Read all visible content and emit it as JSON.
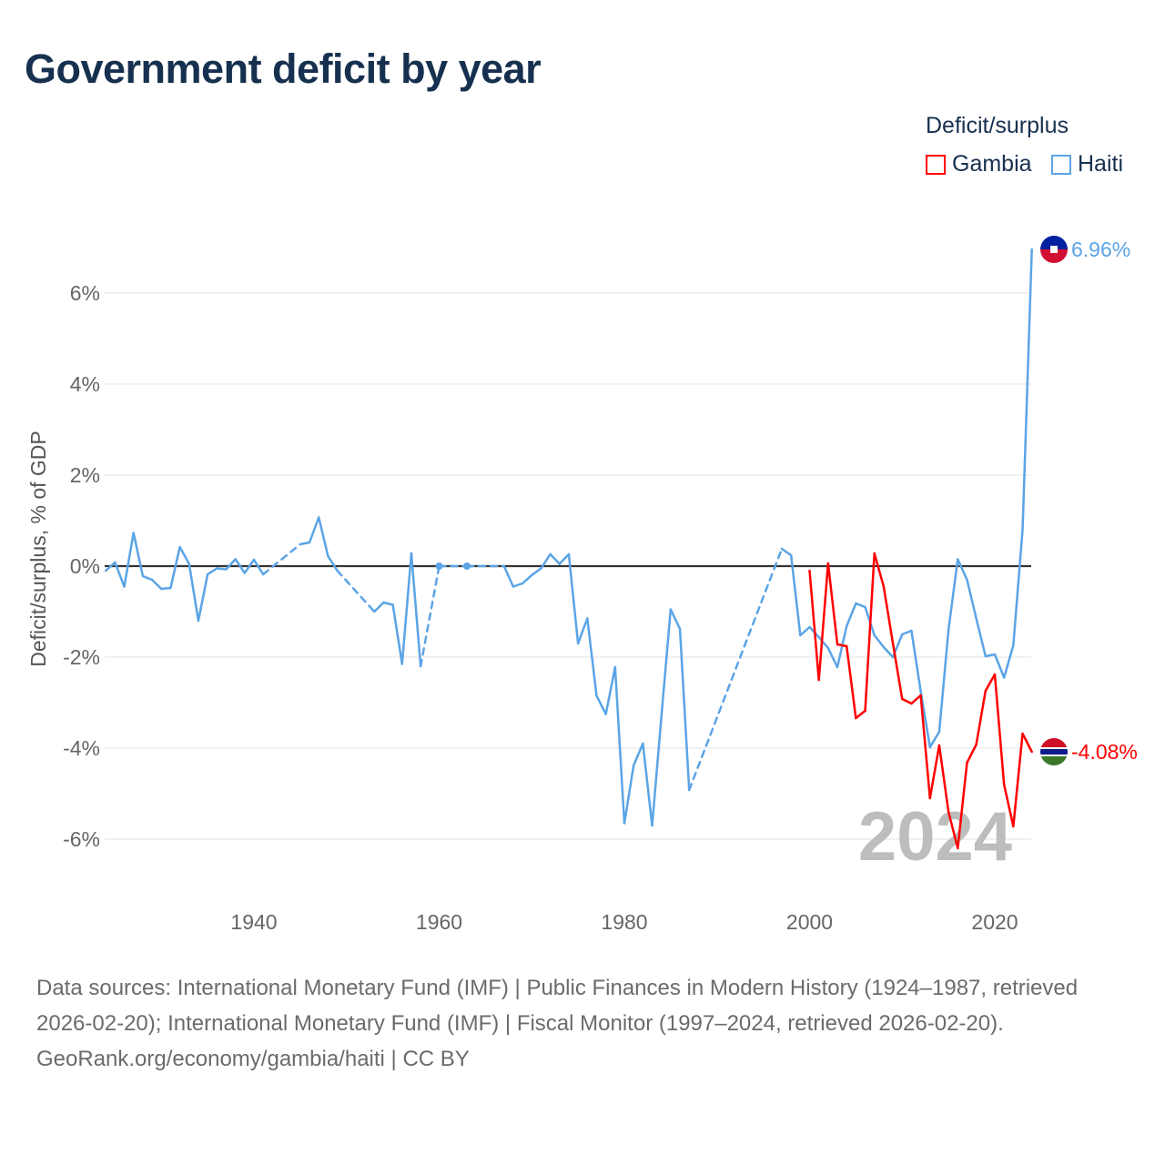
{
  "title": "Government deficit by year",
  "legend": {
    "title": "Deficit/surplus",
    "items": [
      {
        "name": "Gambia",
        "color": "#ff0000"
      },
      {
        "name": "Haiti",
        "color": "#5ba4e6"
      }
    ]
  },
  "footer": {
    "sources": "Data sources: International Monetary Fund (IMF) | Public Finances in Modern History (1924–1987, retrieved 2026-02-20); International Monetary Fund (IMF) | Fiscal Monitor (1997–2024, retrieved 2026-02-20).",
    "credit": "GeoRank.org/economy/gambia/haiti | CC BY"
  },
  "chart_data": {
    "type": "line",
    "title": "Government deficit by year",
    "xlabel": "",
    "ylabel": "Deficit/surplus, % of GDP",
    "xlim": [
      1924,
      2024
    ],
    "ylim": [
      -7.2,
      7.5
    ],
    "xticks": [
      1940,
      1960,
      1980,
      2000,
      2020
    ],
    "xtick_labels": [
      "1940",
      "1960",
      "1980",
      "2000",
      "2020"
    ],
    "yticks": [
      -6,
      -4,
      -2,
      0,
      2,
      4,
      6
    ],
    "ytick_labels": [
      "-6%",
      "-4%",
      "-2%",
      "0%",
      "2%",
      "4%",
      "6%"
    ],
    "watermark_year": "2024",
    "series": [
      {
        "name": "Haiti",
        "color": "#5ba4e6",
        "end_label": "6.96%",
        "x": [
          1924,
          1925,
          1926,
          1927,
          1928,
          1929,
          1930,
          1931,
          1932,
          1933,
          1934,
          1935,
          1936,
          1937,
          1938,
          1939,
          1940,
          1941,
          1945,
          1946,
          1947,
          1948,
          1949,
          1953,
          1954,
          1955,
          1956,
          1957,
          1958,
          1960,
          1963,
          1967,
          1968,
          1969,
          1970,
          1971,
          1972,
          1973,
          1974,
          1975,
          1976,
          1977,
          1978,
          1979,
          1980,
          1981,
          1982,
          1983,
          1984,
          1985,
          1986,
          1987,
          1997,
          1998,
          1999,
          2000,
          2001,
          2002,
          2003,
          2004,
          2005,
          2006,
          2007,
          2008,
          2009,
          2010,
          2011,
          2012,
          2013,
          2014,
          2015,
          2016,
          2017,
          2018,
          2019,
          2020,
          2021,
          2022,
          2023,
          2024
        ],
        "y": [
          -0.1,
          0.08,
          -0.45,
          0.73,
          -0.22,
          -0.3,
          -0.5,
          -0.48,
          0.42,
          0.05,
          -1.2,
          -0.18,
          -0.05,
          -0.07,
          0.15,
          -0.15,
          0.14,
          -0.18,
          0.48,
          0.52,
          1.07,
          0.22,
          -0.1,
          -1.0,
          -0.8,
          -0.85,
          -2.15,
          0.28,
          -2.2,
          0.0,
          0.0,
          0.0,
          -0.45,
          -0.38,
          -0.2,
          -0.05,
          0.26,
          0.05,
          0.26,
          -1.7,
          -1.15,
          -2.85,
          -3.25,
          -2.22,
          -5.65,
          -4.38,
          -3.9,
          -5.7,
          -3.3,
          -0.95,
          -1.38,
          -4.92,
          0.38,
          0.24,
          -1.52,
          -1.34,
          -1.56,
          -1.8,
          -2.22,
          -1.32,
          -0.82,
          -0.9,
          -1.52,
          -1.78,
          -2.0,
          -1.5,
          -1.42,
          -2.75,
          -3.98,
          -3.64,
          -1.4,
          0.15,
          -0.3,
          -1.15,
          -1.98,
          -1.94,
          -2.45,
          -1.74,
          0.8,
          6.96
        ]
      },
      {
        "name": "Gambia",
        "color": "#ff0000",
        "end_label": "-4.08%",
        "x": [
          2000,
          2001,
          2002,
          2003,
          2004,
          2005,
          2006,
          2007,
          2008,
          2009,
          2010,
          2011,
          2012,
          2013,
          2014,
          2015,
          2016,
          2017,
          2018,
          2019,
          2020,
          2021,
          2022,
          2023,
          2024
        ],
        "y": [
          -0.1,
          -2.5,
          0.06,
          -1.72,
          -1.76,
          -3.34,
          -3.18,
          0.28,
          -0.45,
          -1.7,
          -2.92,
          -3.02,
          -2.84,
          -5.1,
          -3.94,
          -5.4,
          -6.2,
          -4.32,
          -3.92,
          -2.74,
          -2.38,
          -4.8,
          -5.72,
          -3.68,
          -4.08
        ]
      }
    ]
  }
}
